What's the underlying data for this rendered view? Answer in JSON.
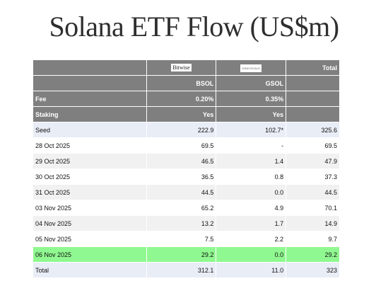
{
  "title": "Solana ETF Flow (US$m)",
  "header": {
    "issuers": [
      "Bitwise",
      "GRAYSCALE",
      "Total"
    ],
    "tickers": [
      "BSOL",
      "GSOL"
    ],
    "fee": {
      "label": "Fee",
      "values": [
        "0.20%",
        "0.35%"
      ]
    },
    "staking": {
      "label": "Staking",
      "values": [
        "Yes",
        "Yes"
      ]
    }
  },
  "colors": {
    "header_bg": "#7f7f7f",
    "seed_total_bg": "#e9edf6",
    "highlight_bg": "#90f890"
  },
  "chart_data": {
    "type": "table",
    "title": "Solana ETF Flow (US$m)",
    "columns": [
      "",
      "BSOL",
      "GSOL",
      "Total"
    ],
    "rows": [
      {
        "label": "Seed",
        "bsol": "222.9",
        "gsol": "102.7*",
        "total": "325.6",
        "style": "blue"
      },
      {
        "label": "28 Oct 2025",
        "bsol": "69.5",
        "gsol": "-",
        "total": "69.5",
        "style": "white"
      },
      {
        "label": "29 Oct 2025",
        "bsol": "46.5",
        "gsol": "1.4",
        "total": "47.9",
        "style": "grey"
      },
      {
        "label": "30 Oct 2025",
        "bsol": "36.5",
        "gsol": "0.8",
        "total": "37.3",
        "style": "white"
      },
      {
        "label": "31 Oct 2025",
        "bsol": "44.5",
        "gsol": "0.0",
        "total": "44.5",
        "style": "grey"
      },
      {
        "label": "03 Nov 2025",
        "bsol": "65.2",
        "gsol": "4.9",
        "total": "70.1",
        "style": "white"
      },
      {
        "label": "04 Nov 2025",
        "bsol": "13.2",
        "gsol": "1.7",
        "total": "14.9",
        "style": "grey"
      },
      {
        "label": "05 Nov 2025",
        "bsol": "7.5",
        "gsol": "2.2",
        "total": "9.7",
        "style": "white"
      },
      {
        "label": "06 Nov 2025",
        "bsol": "29.2",
        "gsol": "0.0",
        "total": "29.2",
        "style": "green"
      },
      {
        "label": "Total",
        "bsol": "312.1",
        "gsol": "11.0",
        "total": "323",
        "style": "blue"
      }
    ]
  }
}
